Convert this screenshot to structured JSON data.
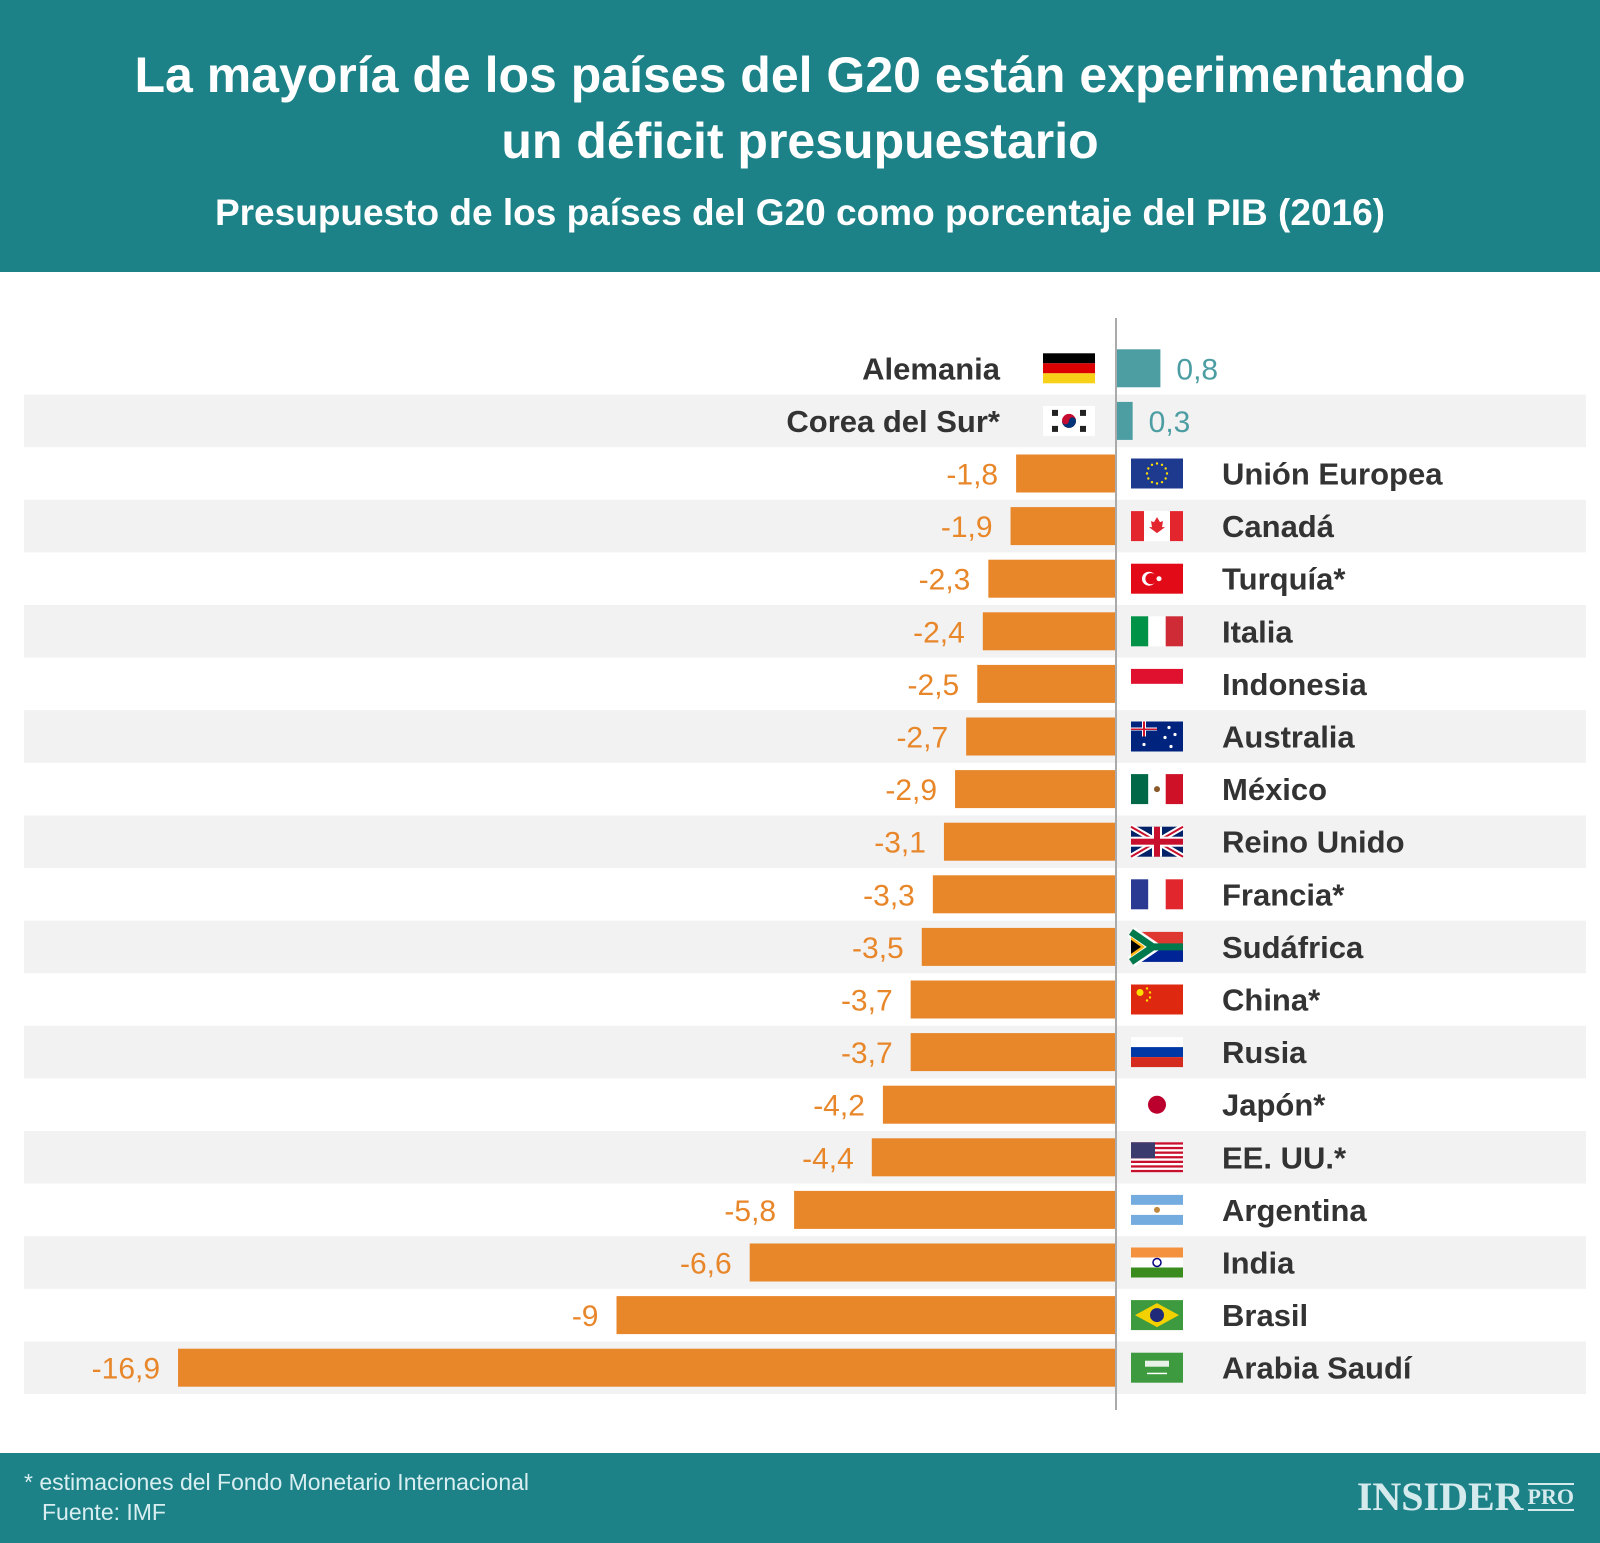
{
  "header": {
    "title_line1": "La mayoría de los países del G20 están experimentando",
    "title_line2": "un déficit presupuestario",
    "subtitle": "Presupuesto de los países del G20 como porcentaje del PIB (2016)"
  },
  "chart_data": {
    "type": "bar",
    "orientation": "horizontal",
    "title": "La mayoría de los países del G20 están experimentando un déficit presupuestario",
    "subtitle": "Presupuesto de los países del G20 como porcentaje del PIB (2016)",
    "categories": [
      "Alemania",
      "Corea del Sur*",
      "Unión Europea",
      "Canadá",
      "Turquía*",
      "Italia",
      "Indonesia",
      "Australia",
      "México",
      "Reino Unido",
      "Francia*",
      "Sudáfrica",
      "China*",
      "Rusia",
      "Japón*",
      "EE. UU.*",
      "Argentina",
      "India",
      "Brasil",
      "Arabia Saudí"
    ],
    "values": [
      0.8,
      0.3,
      -1.8,
      -1.9,
      -2.3,
      -2.4,
      -2.5,
      -2.7,
      -2.9,
      -3.1,
      -3.3,
      -3.5,
      -3.7,
      -3.7,
      -4.2,
      -4.4,
      -5.8,
      -6.6,
      -9,
      -16.9
    ],
    "value_labels": [
      "0,8",
      "0,3",
      "-1,8",
      "-1,9",
      "-2,3",
      "-2,4",
      "-2,5",
      "-2,7",
      "-2,9",
      "-3,1",
      "-3,3",
      "-3,5",
      "-3,7",
      "-3,7",
      "-4,2",
      "-4,4",
      "-5,8",
      "-6,6",
      "-9",
      "-16,9"
    ],
    "flags": [
      "de",
      "kr",
      "eu",
      "ca",
      "tr",
      "it",
      "id",
      "au",
      "mx",
      "gb",
      "fr",
      "za",
      "cn",
      "ru",
      "jp",
      "us",
      "ar",
      "in",
      "br",
      "sa"
    ],
    "xlim": [
      -16.9,
      0.8
    ],
    "grid": false,
    "alternating_row_stripes": true,
    "colors": {
      "positive": "#4c9ea3",
      "negative": "#e8862a",
      "axis": "#aaaaaa",
      "stripe": "#f2f2f2"
    }
  },
  "footer": {
    "note": "* estimaciones del Fondo Monetario Internacional",
    "source": "Fuente: IMF",
    "logo": "INSIDER",
    "logo_suffix": "PRO"
  }
}
